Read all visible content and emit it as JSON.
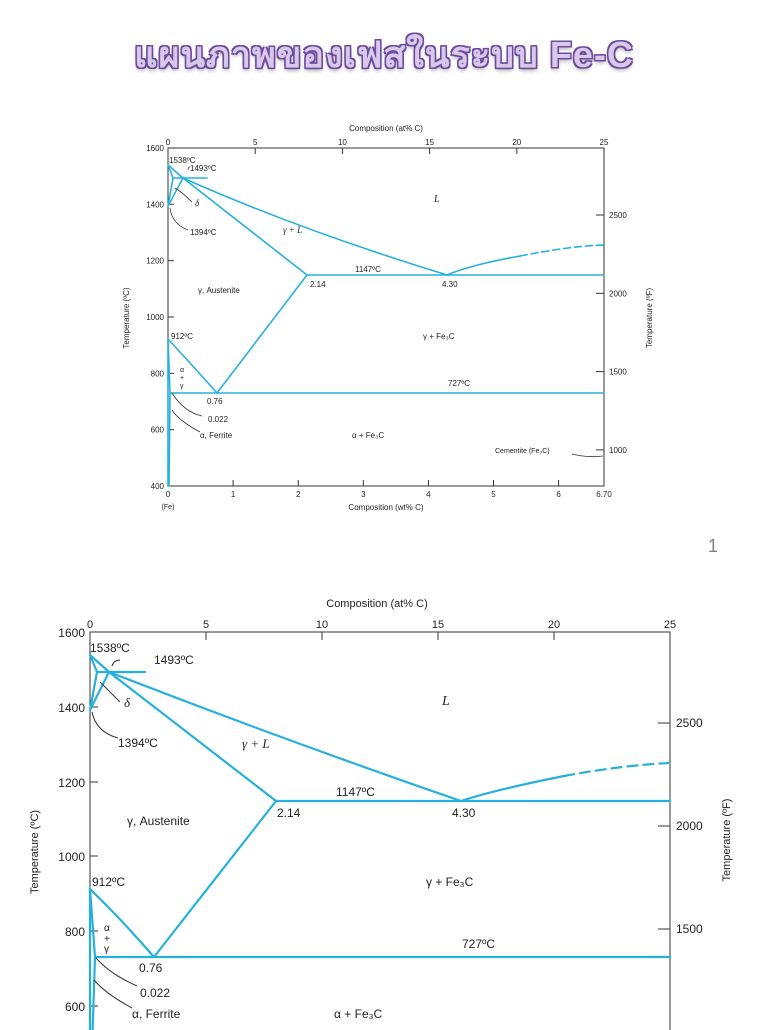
{
  "slide": {
    "title": "แผนภาพของเฟสในระบบ Fe-C",
    "page_number": "1"
  },
  "diagram": {
    "top_axis_title": "Composition (at% C)",
    "bottom_axis_title": "Composition (wt% C)",
    "left_axis_title": "Temperature (ºC)",
    "right_axis_title": "Temperature (ºF)",
    "top_ticks": [
      "0",
      "5",
      "10",
      "15",
      "20",
      "25"
    ],
    "bottom_ticks": [
      "0",
      "1",
      "2",
      "3",
      "4",
      "5",
      "6",
      "6.70"
    ],
    "left_ticks": [
      "1600",
      "1400",
      "1200",
      "1000",
      "800",
      "600",
      "400"
    ],
    "right_ticks": [
      "2500",
      "2000",
      "1500",
      "1000"
    ],
    "fe_label": "(Fe)",
    "labels": {
      "t1538": "1538ºC",
      "t1493": "1493ºC",
      "t1394": "1394ºC",
      "t1147": "1147ºC",
      "t912": "912ºC",
      "t727": "727ºC",
      "c214": "2.14",
      "c430": "4.30",
      "c076": "0.76",
      "c0022": "0.022",
      "liquid": "L",
      "gamma_l": "γ + L",
      "delta": "δ",
      "austenite": "γ, Austenite",
      "gamma_fe3c": "γ + Fe₃C",
      "alpha_gamma_a": "α",
      "alpha_gamma_plus": "+",
      "alpha_gamma_g": "γ",
      "ferrite": "α, Ferrite",
      "alpha_fe3c": "α + Fe₃C",
      "cementite": "Cementite (Fe₃C)"
    }
  },
  "colors": {
    "phase_line": "#27b0dd",
    "axis": "#333333",
    "title_fill": "#d8c8ea",
    "title_outline": "#6d4a9c"
  }
}
